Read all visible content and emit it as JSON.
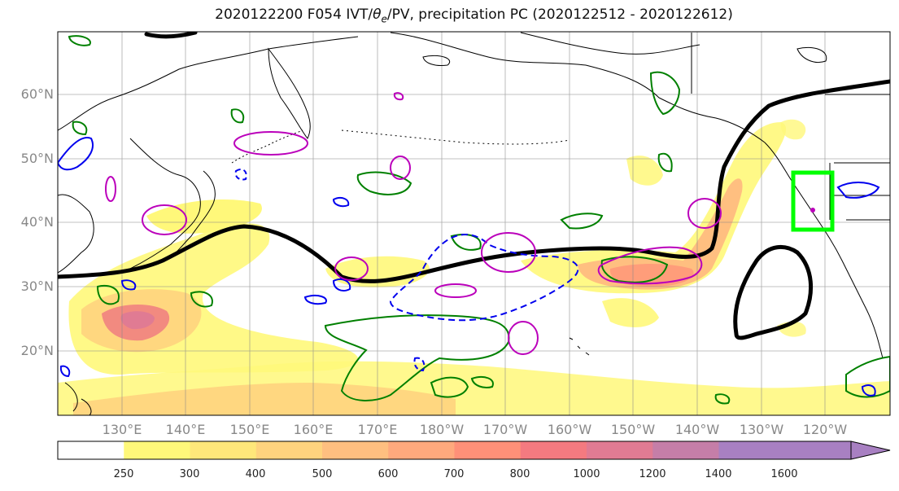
{
  "title": {
    "prefix": "2020122200 F054 IVT/",
    "theta": "θ",
    "theta_sub": "e",
    "suffix": "/PV, precipitation PC (2020122512 - 2020122612)"
  },
  "lat_labels": [
    "60°N",
    "50°N",
    "40°N",
    "30°N",
    "20°N"
  ],
  "lon_labels": [
    "130°E",
    "140°E",
    "150°E",
    "160°E",
    "170°E",
    "180°W",
    "170°W",
    "160°W",
    "150°W",
    "140°W",
    "130°W",
    "120°W"
  ],
  "colorbar": {
    "labels": [
      "250",
      "300",
      "400",
      "500",
      "600",
      "700",
      "800",
      "1000",
      "1200",
      "1400",
      "1600"
    ],
    "colors": [
      "#ffffff",
      "#fff87a",
      "#ffe77a",
      "#ffd37e",
      "#ffbf80",
      "#ffa97d",
      "#ff9078",
      "#f47a80",
      "#e07b93",
      "#c57ea8",
      "#a880c2"
    ]
  },
  "colors": {
    "contour_black": "#000000",
    "contour_green": "#008000",
    "contour_blue": "#0000ee",
    "contour_magenta": "#bb00bb",
    "box_green": "#00ff00",
    "grid": "#888888",
    "coast": "#000000"
  }
}
